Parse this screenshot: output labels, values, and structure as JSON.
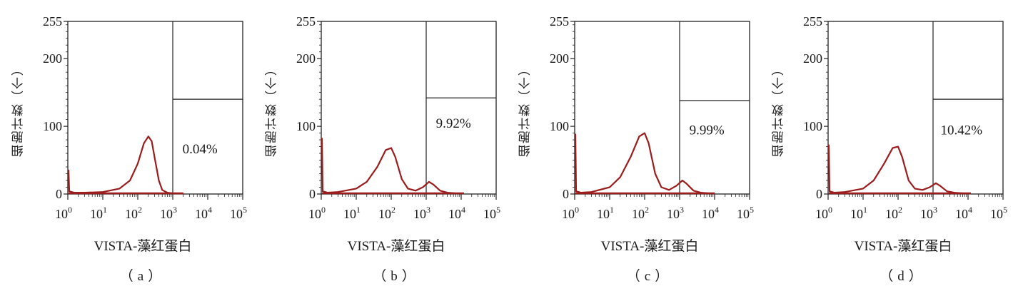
{
  "colors": {
    "curve": "#9b1c1c",
    "frame": "#222222",
    "text": "#1a1a1a",
    "background": "#ffffff"
  },
  "chart_data": [
    {
      "type": "line",
      "panel_label": "（a）",
      "xlabel": "VISTA-藻红蛋白",
      "ylabel": "细胞计数（个）",
      "x_scale": "log",
      "xlim": [
        1,
        100000
      ],
      "ylim": [
        0,
        255
      ],
      "x_ticks": [
        {
          "base": "10",
          "exp": "0",
          "value": 1
        },
        {
          "base": "10",
          "exp": "1",
          "value": 10
        },
        {
          "base": "10",
          "exp": "2",
          "value": 100
        },
        {
          "base": "10",
          "exp": "3",
          "value": 1000
        },
        {
          "base": "10",
          "exp": "4",
          "value": 10000
        },
        {
          "base": "10",
          "exp": "5",
          "value": 100000
        }
      ],
      "y_ticks": [
        {
          "label": "0",
          "value": 0
        },
        {
          "label": "100",
          "value": 100
        },
        {
          "label": "200",
          "value": 200
        },
        {
          "label": "255",
          "value": 255
        }
      ],
      "gate": {
        "x": 1000,
        "y": 140
      },
      "annotation": "0.04%",
      "annotation_pos": {
        "x": 6000,
        "y": 60
      },
      "x": [
        1,
        1.05,
        1.1,
        1.5,
        3,
        10,
        30,
        60,
        100,
        150,
        200,
        250,
        300,
        400,
        500,
        700,
        1000,
        1500,
        2000
      ],
      "y": [
        35,
        35,
        4,
        2,
        2,
        3,
        8,
        20,
        45,
        75,
        85,
        78,
        55,
        20,
        6,
        2,
        1,
        1,
        1
      ]
    },
    {
      "type": "line",
      "panel_label": "（b）",
      "xlabel": "VISTA-藻红蛋白",
      "ylabel": "细胞计数（个）",
      "x_scale": "log",
      "xlim": [
        1,
        100000
      ],
      "ylim": [
        0,
        255
      ],
      "x_ticks": [
        {
          "base": "10",
          "exp": "0",
          "value": 1
        },
        {
          "base": "10",
          "exp": "1",
          "value": 10
        },
        {
          "base": "10",
          "exp": "2",
          "value": 100
        },
        {
          "base": "10",
          "exp": "3",
          "value": 1000
        },
        {
          "base": "10",
          "exp": "4",
          "value": 10000
        },
        {
          "base": "10",
          "exp": "5",
          "value": 100000
        }
      ],
      "y_ticks": [
        {
          "label": "0",
          "value": 0
        },
        {
          "label": "100",
          "value": 100
        },
        {
          "label": "200",
          "value": 200
        },
        {
          "label": "255",
          "value": 255
        }
      ],
      "gate": {
        "x": 1000,
        "y": 142
      },
      "annotation": "9.92%",
      "annotation_pos": {
        "x": 6000,
        "y": 98
      },
      "x": [
        1,
        1.05,
        1.1,
        1.5,
        3,
        10,
        20,
        40,
        70,
        100,
        130,
        200,
        300,
        500,
        800,
        1200,
        1600,
        2500,
        4000,
        7000,
        12000
      ],
      "y": [
        82,
        82,
        4,
        2,
        3,
        8,
        18,
        40,
        65,
        68,
        55,
        22,
        8,
        5,
        10,
        18,
        14,
        5,
        2,
        1,
        1
      ]
    },
    {
      "type": "line",
      "panel_label": "（c）",
      "xlabel": "VISTA-藻红蛋白",
      "ylabel": "细胞计数（个）",
      "x_scale": "log",
      "xlim": [
        1,
        100000
      ],
      "ylim": [
        0,
        255
      ],
      "x_ticks": [
        {
          "base": "10",
          "exp": "0",
          "value": 1
        },
        {
          "base": "10",
          "exp": "1",
          "value": 10
        },
        {
          "base": "10",
          "exp": "2",
          "value": 100
        },
        {
          "base": "10",
          "exp": "3",
          "value": 1000
        },
        {
          "base": "10",
          "exp": "4",
          "value": 10000
        },
        {
          "base": "10",
          "exp": "5",
          "value": 100000
        }
      ],
      "y_ticks": [
        {
          "label": "0",
          "value": 0
        },
        {
          "label": "100",
          "value": 100
        },
        {
          "label": "200",
          "value": 200
        },
        {
          "label": "255",
          "value": 255
        }
      ],
      "gate": {
        "x": 1000,
        "y": 138
      },
      "annotation": "9.99%",
      "annotation_pos": {
        "x": 6000,
        "y": 88
      },
      "x": [
        1,
        1.05,
        1.1,
        1.5,
        3,
        10,
        20,
        40,
        70,
        100,
        130,
        200,
        300,
        500,
        800,
        1200,
        1600,
        2500,
        4000,
        7000,
        10000
      ],
      "y": [
        88,
        88,
        4,
        2,
        3,
        10,
        25,
        55,
        85,
        90,
        75,
        30,
        10,
        6,
        12,
        20,
        15,
        5,
        2,
        1,
        1
      ]
    },
    {
      "type": "line",
      "panel_label": "（d）",
      "xlabel": "VISTA-藻红蛋白",
      "ylabel": "细胞计数（个）",
      "x_scale": "log",
      "xlim": [
        1,
        100000
      ],
      "ylim": [
        0,
        255
      ],
      "x_ticks": [
        {
          "base": "10",
          "exp": "0",
          "value": 1
        },
        {
          "base": "10",
          "exp": "1",
          "value": 10
        },
        {
          "base": "10",
          "exp": "2",
          "value": 100
        },
        {
          "base": "10",
          "exp": "3",
          "value": 1000
        },
        {
          "base": "10",
          "exp": "4",
          "value": 10000
        },
        {
          "base": "10",
          "exp": "5",
          "value": 100000
        }
      ],
      "y_ticks": [
        {
          "label": "0",
          "value": 0
        },
        {
          "label": "100",
          "value": 100
        },
        {
          "label": "200",
          "value": 200
        },
        {
          "label": "255",
          "value": 255
        }
      ],
      "gate": {
        "x": 1000,
        "y": 140
      },
      "annotation": "10.42%",
      "annotation_pos": {
        "x": 6500,
        "y": 88
      },
      "x": [
        1,
        1.05,
        1.1,
        1.5,
        3,
        10,
        20,
        40,
        70,
        100,
        130,
        200,
        300,
        500,
        800,
        1200,
        1600,
        2500,
        4000,
        7000,
        12000
      ],
      "y": [
        72,
        72,
        4,
        2,
        3,
        8,
        20,
        45,
        68,
        70,
        55,
        20,
        8,
        6,
        10,
        16,
        12,
        4,
        2,
        1,
        1
      ]
    }
  ]
}
